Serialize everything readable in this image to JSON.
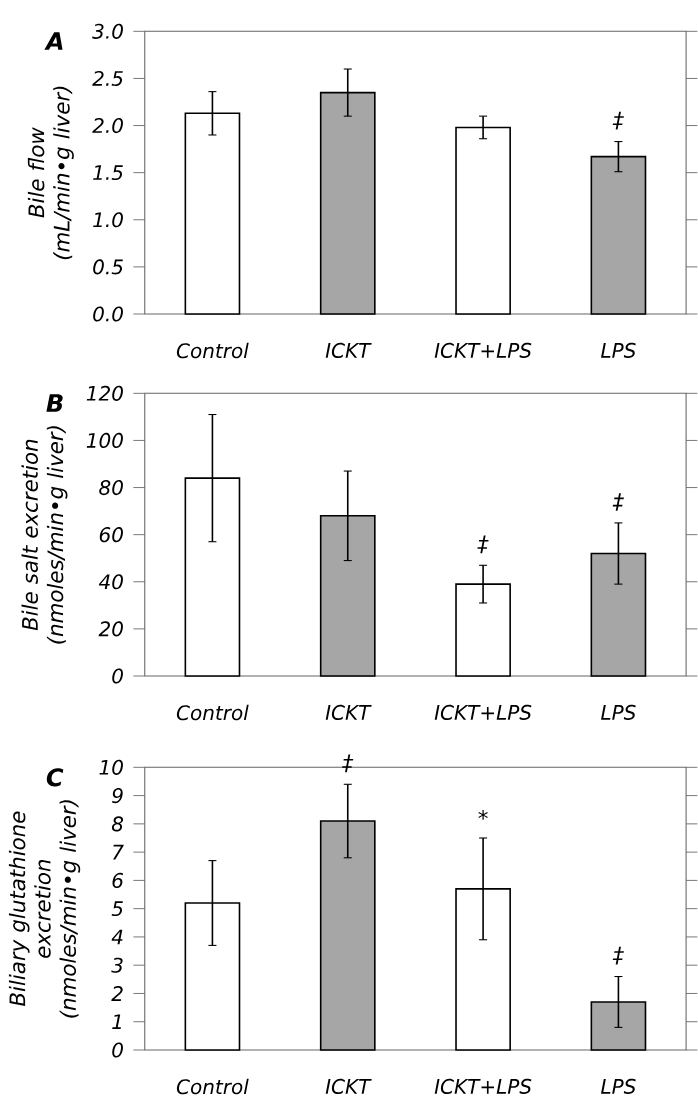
{
  "chart_data": [
    {
      "type": "bar",
      "title": "A",
      "categories": [
        "Control",
        "ICKT",
        "ICKT+LPS",
        "LPS"
      ],
      "values": [
        2.13,
        2.35,
        1.98,
        1.67
      ],
      "errors": [
        0.23,
        0.25,
        0.12,
        0.16
      ],
      "colors": [
        "#ffffff",
        "#a6a6a6",
        "#ffffff",
        "#a6a6a6"
      ],
      "ylabel": "Bile flow (mL/min•g liver)",
      "ylim": [
        0,
        3
      ],
      "yticks": [
        {
          "value": 0,
          "label": "0.0"
        },
        {
          "value": 0.5,
          "label": "0.5"
        },
        {
          "value": 1,
          "label": "1.0"
        },
        {
          "value": 1.5,
          "label": "1.5"
        },
        {
          "value": 2,
          "label": "2.0"
        },
        {
          "value": 2.5,
          "label": "2.5"
        },
        {
          "value": 3,
          "label": "3.0"
        }
      ],
      "annotations": [
        {
          "text": "‡",
          "x": "LPS",
          "y": 1.83
        }
      ]
    },
    {
      "type": "bar",
      "title": "B",
      "categories": [
        "Control",
        "ICKT",
        "ICKT+LPS",
        "LPS"
      ],
      "values": [
        84,
        68,
        39,
        52
      ],
      "errors": [
        27,
        19,
        8,
        13
      ],
      "colors": [
        "#ffffff",
        "#a6a6a6",
        "#ffffff",
        "#a6a6a6"
      ],
      "ylabel": "Bile salt excretion (nmoles/min•g liver)",
      "ylim": [
        0,
        120
      ],
      "yticks": [
        0,
        20,
        40,
        60,
        80,
        100,
        120
      ],
      "annotations": [
        {
          "text": "‡",
          "x": "ICKT+LPS",
          "y": 47
        },
        {
          "text": "‡",
          "x": "LPS",
          "y": 65
        }
      ]
    },
    {
      "type": "bar",
      "title": "C",
      "categories": [
        "Control",
        "ICKT",
        "ICKT+LPS",
        "LPS"
      ],
      "values": [
        5.2,
        8.1,
        5.7,
        1.7
      ],
      "errors": [
        1.5,
        1.3,
        1.8,
        0.9
      ],
      "colors": [
        "#ffffff",
        "#a6a6a6",
        "#ffffff",
        "#a6a6a6"
      ],
      "ylabel": "Biliary glutathione excretion (nmoles/min•g liver)",
      "ylim": [
        0,
        10
      ],
      "yticks": [
        0,
        1,
        2,
        3,
        4,
        5,
        6,
        7,
        8,
        9,
        10
      ],
      "annotations": [
        {
          "text": "‡",
          "x": "ICKT",
          "y": 9.4
        },
        {
          "text": "*",
          "x": "ICKT+LPS",
          "y": 7.5
        },
        {
          "text": "‡",
          "x": "LPS",
          "y": 2.6
        }
      ]
    }
  ]
}
